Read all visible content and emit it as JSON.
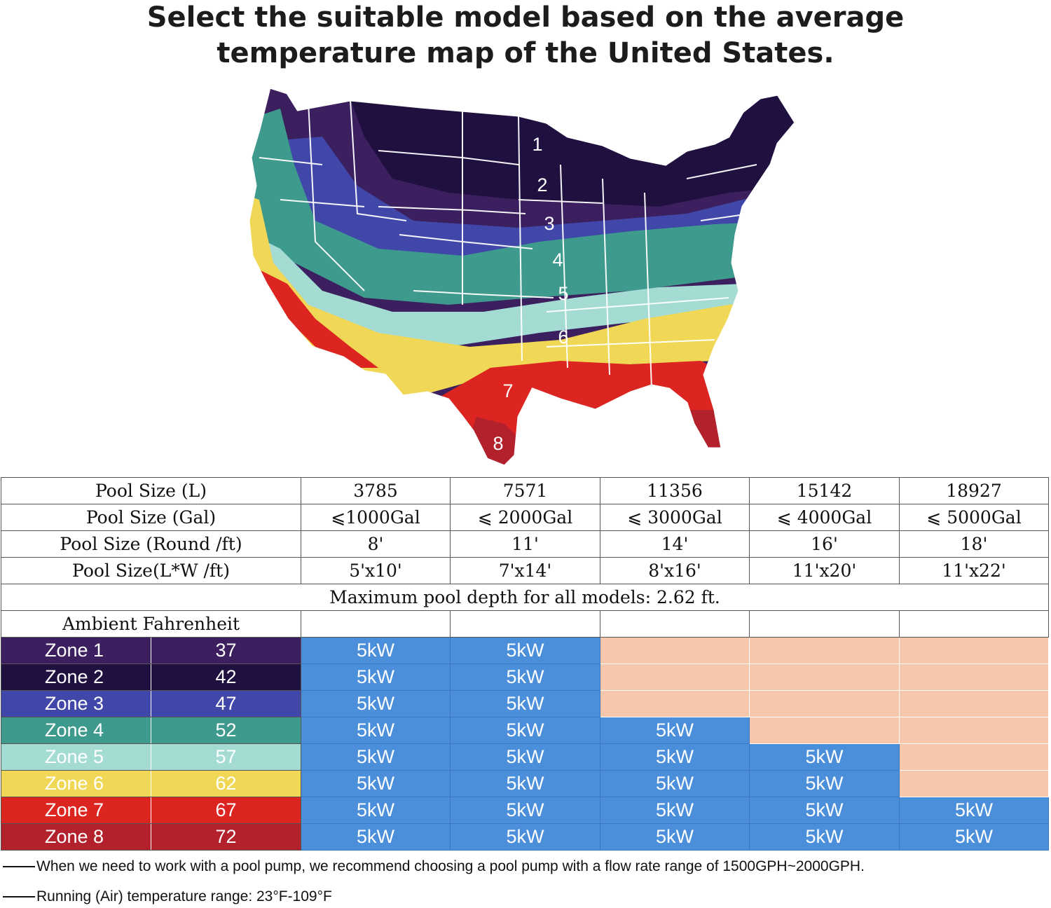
{
  "title": {
    "line1": "Select the suitable model based on the average",
    "line2": "temperature map of the United States."
  },
  "map": {
    "zone_labels": [
      "1",
      "2",
      "3",
      "4",
      "5",
      "6",
      "7",
      "8"
    ],
    "zone_colors": [
      "#3b1f5e",
      "#1f1040",
      "#4047a8",
      "#3f9a8e",
      "#a4dcd4",
      "#f0d755",
      "#dc2420",
      "#b3222c"
    ]
  },
  "table": {
    "header_rows": [
      {
        "label": "Pool Size (L)",
        "values": [
          "3785",
          "7571",
          "11356",
          "15142",
          "18927"
        ]
      },
      {
        "label": "Pool Size (Gal)",
        "values": [
          "⩽1000Gal",
          "⩽ 2000Gal",
          "⩽ 3000Gal",
          "⩽ 4000Gal",
          "⩽ 5000Gal"
        ]
      },
      {
        "label": "Pool Size (Round /ft)",
        "values": [
          "8'",
          "11'",
          "14'",
          "16'",
          "18'"
        ]
      },
      {
        "label": "Pool Size(L*W /ft)",
        "values": [
          "5'x10'",
          "7'x14'",
          "8'x16'",
          "11'x20'",
          "11'x22'"
        ]
      }
    ],
    "depth_note": "Maximum pool depth for all models: 2.62 ft.",
    "ambient_label": "Ambient Fahrenheit",
    "zones": [
      {
        "name": "Zone 1",
        "temp": "37",
        "color": "#3b1f5e",
        "cells": [
          "5kW",
          "5kW",
          "",
          "",
          ""
        ]
      },
      {
        "name": "Zone 2",
        "temp": "42",
        "color": "#1f1040",
        "cells": [
          "5kW",
          "5kW",
          "",
          "",
          ""
        ]
      },
      {
        "name": "Zone 3",
        "temp": "47",
        "color": "#4047a8",
        "cells": [
          "5kW",
          "5kW",
          "",
          "",
          ""
        ]
      },
      {
        "name": "Zone 4",
        "temp": "52",
        "color": "#3f9a8e",
        "cells": [
          "5kW",
          "5kW",
          "5kW",
          "",
          ""
        ]
      },
      {
        "name": "Zone 5",
        "temp": "57",
        "color": "#a4dcd4",
        "cells": [
          "5kW",
          "5kW",
          "5kW",
          "5kW",
          ""
        ]
      },
      {
        "name": "Zone 6",
        "temp": "62",
        "color": "#f0d755",
        "cells": [
          "5kW",
          "5kW",
          "5kW",
          "5kW",
          ""
        ]
      },
      {
        "name": "Zone 7",
        "temp": "67",
        "color": "#dc2420",
        "cells": [
          "5kW",
          "5kW",
          "5kW",
          "5kW",
          "5kW"
        ]
      },
      {
        "name": "Zone 8",
        "temp": "72",
        "color": "#b3222c",
        "cells": [
          "5kW",
          "5kW",
          "5kW",
          "5kW",
          "5kW"
        ]
      }
    ]
  },
  "notes": {
    "pump": "When we need to work with a pool pump, we recommend choosing a pool pump with a flow rate range of 1500GPH~2000GPH.",
    "temperature": "Running (Air) temperature range: 23°F-109°F"
  }
}
